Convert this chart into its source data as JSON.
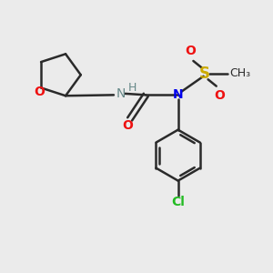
{
  "bg_color": "#ebebeb",
  "bond_color": "#2a2a2a",
  "O_color": "#ee1111",
  "N_color": "#0000ee",
  "S_color": "#ccaa00",
  "Cl_color": "#22bb22",
  "H_color": "#888888",
  "line_width": 1.8,
  "font_size": 10,
  "fig_size": [
    3.0,
    3.0
  ],
  "xlim": [
    0,
    10
  ],
  "ylim": [
    0,
    10
  ]
}
